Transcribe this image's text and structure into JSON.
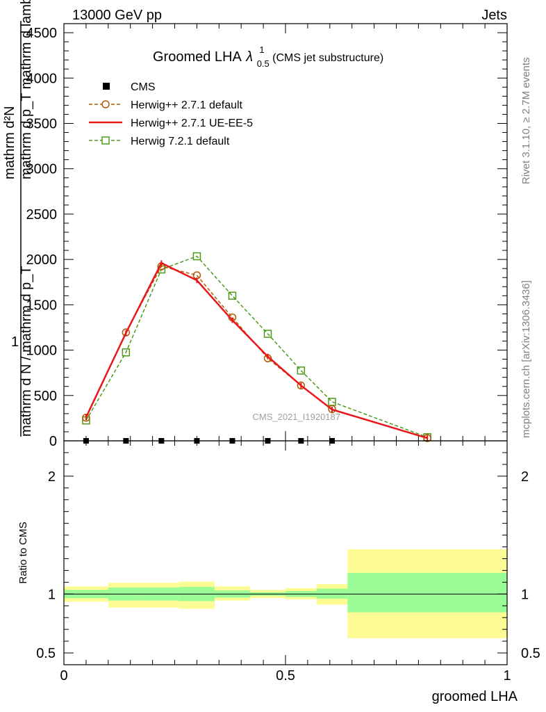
{
  "header": {
    "energy_label": "13000 GeV pp",
    "process_label": "Jets"
  },
  "side_labels": {
    "rivet": "Rivet 3.1.10, ≥ 2.7M events",
    "mcplots": "mcplots.cern.ch [arXiv:1306.3436]"
  },
  "colors": {
    "cms": "#000000",
    "herwig_default": "#b35900",
    "herwig_ueee5": "#e8171b",
    "herwig721": "#4c9a1a",
    "band_inner": "#9afc94",
    "band_outer": "#fdfc94"
  },
  "chart_data": [
    {
      "type": "line",
      "panel": "main",
      "title": "Groomed LHA",
      "title_symbol": "λ",
      "title_sub": "0.5",
      "title_sup": "1",
      "title_suffix": "(CMS jet substructure)",
      "watermark": "CMS_2021_I1920187",
      "ylabel_top": "mathrm d²N",
      "ylabel_top_2": "mathrm d p_T mathrm d lambda",
      "ylabel_bottom_prefix": "1",
      "ylabel_bottom": "mathrm d N / mathrm d p_T",
      "xlim": [
        0,
        1
      ],
      "ylim": [
        0,
        4600
      ],
      "yticks": [
        0,
        500,
        1000,
        1500,
        2000,
        2500,
        3000,
        3500,
        4000,
        4500
      ],
      "ytick_labels": [
        "0",
        "500",
        "1000",
        "1500",
        "2000",
        "2500",
        "3000",
        "3500",
        "4000",
        "4500"
      ],
      "legend_position": "top-left",
      "series": [
        {
          "name": "CMS",
          "style": "marker-square",
          "x": [
            0.05,
            0.14,
            0.22,
            0.3,
            0.38,
            0.46,
            0.535,
            0.605
          ],
          "y": [
            0,
            0,
            0,
            0,
            0,
            0,
            0,
            0
          ]
        },
        {
          "name": "Herwig++ 2.7.1 default",
          "style": "dashed-circle",
          "x": [
            0.05,
            0.14,
            0.22,
            0.3,
            0.38,
            0.46,
            0.535,
            0.605,
            0.82
          ],
          "y": [
            255,
            1195,
            1925,
            1825,
            1360,
            910,
            610,
            350,
            30
          ]
        },
        {
          "name": "Herwig++ 2.7.1 UE-EE-5",
          "style": "solid",
          "x": [
            0.05,
            0.14,
            0.22,
            0.3,
            0.38,
            0.46,
            0.535,
            0.605,
            0.82
          ],
          "y": [
            260,
            1190,
            1960,
            1770,
            1330,
            930,
            610,
            345,
            30
          ]
        },
        {
          "name": "Herwig 7.2.1 default",
          "style": "dashed-square",
          "x": [
            0.05,
            0.14,
            0.22,
            0.3,
            0.38,
            0.46,
            0.535,
            0.605,
            0.82
          ],
          "y": [
            225,
            975,
            1890,
            2035,
            1600,
            1180,
            775,
            430,
            40
          ]
        }
      ]
    },
    {
      "type": "area",
      "panel": "ratio",
      "ylabel": "Ratio to CMS",
      "xlabel": "groomed LHA",
      "xlim": [
        0,
        1
      ],
      "ylim": [
        0.4,
        2.3
      ],
      "xticks": [
        0,
        0.5,
        1
      ],
      "xtick_labels": [
        "0",
        "0.5",
        "1"
      ],
      "yticks": [
        0.5,
        1,
        2
      ],
      "ytick_labels": [
        "0.5",
        "1",
        "2"
      ],
      "reference_line": 1,
      "bins": [
        {
          "lo": 0.0,
          "hi": 0.1,
          "inner": [
            0.965,
            1.035
          ],
          "outer": [
            0.935,
            1.065
          ]
        },
        {
          "lo": 0.1,
          "hi": 0.18,
          "inner": [
            0.945,
            1.055
          ],
          "outer": [
            0.885,
            1.095
          ]
        },
        {
          "lo": 0.18,
          "hi": 0.26,
          "inner": [
            0.945,
            1.055
          ],
          "outer": [
            0.885,
            1.095
          ]
        },
        {
          "lo": 0.26,
          "hi": 0.34,
          "inner": [
            0.94,
            1.06
          ],
          "outer": [
            0.875,
            1.105
          ]
        },
        {
          "lo": 0.34,
          "hi": 0.42,
          "inner": [
            0.97,
            1.03
          ],
          "outer": [
            0.945,
            1.065
          ]
        },
        {
          "lo": 0.42,
          "hi": 0.5,
          "inner": [
            0.985,
            1.015
          ],
          "outer": [
            0.965,
            1.035
          ]
        },
        {
          "lo": 0.5,
          "hi": 0.57,
          "inner": [
            0.975,
            1.025
          ],
          "outer": [
            0.955,
            1.05
          ]
        },
        {
          "lo": 0.57,
          "hi": 0.64,
          "inner": [
            0.96,
            1.045
          ],
          "outer": [
            0.91,
            1.085
          ]
        },
        {
          "lo": 0.64,
          "hi": 1.0,
          "inner": [
            0.845,
            1.18
          ],
          "outer": [
            0.625,
            1.38
          ]
        }
      ]
    }
  ]
}
